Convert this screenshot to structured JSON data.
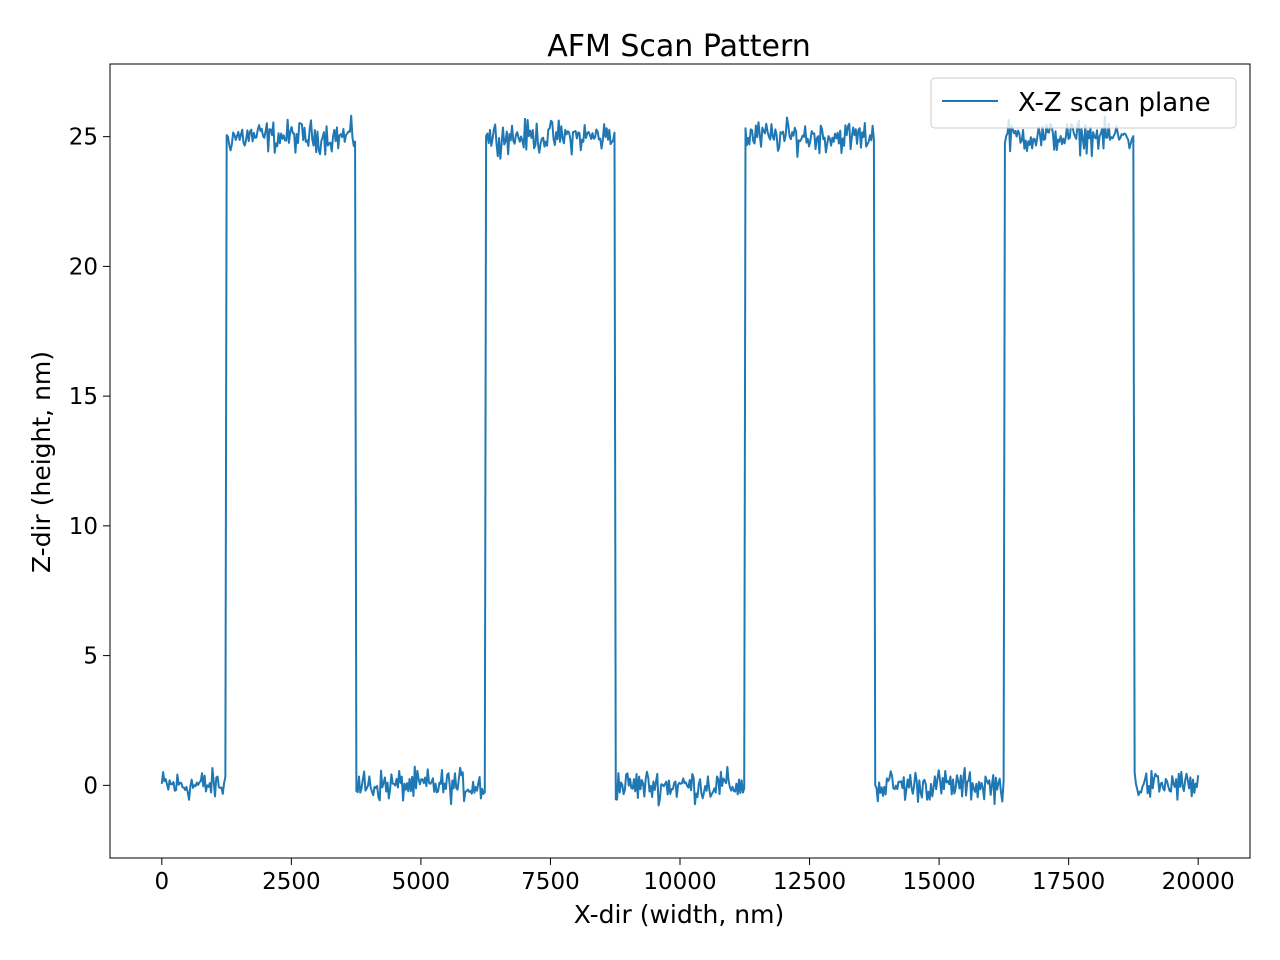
{
  "chart_data": {
    "type": "line",
    "title": "AFM Scan Pattern",
    "xlabel": "X-dir (width, nm)",
    "ylabel": "Z-dir (height, nm)",
    "xlim": [
      -1000,
      21000
    ],
    "ylim": [
      -2.8,
      27.8
    ],
    "xticks": [
      0,
      2500,
      5000,
      7500,
      10000,
      12500,
      15000,
      17500,
      20000
    ],
    "xtick_labels": [
      "0",
      "2500",
      "5000",
      "7500",
      "10000",
      "12500",
      "15000",
      "17500",
      "20000"
    ],
    "yticks": [
      0,
      5,
      10,
      15,
      20,
      25
    ],
    "ytick_labels": [
      "0",
      "5",
      "10",
      "15",
      "20",
      "25"
    ],
    "grid": false,
    "legend_position": "top-right",
    "series": [
      {
        "name": "X-Z scan plane",
        "color": "#1f77b4",
        "x_start": 0,
        "x_end": 20000,
        "low_level": 0,
        "high_level": 25,
        "noise_amplitude": 0.6,
        "period": 5000,
        "high_segments": [
          [
            1250,
            3750
          ],
          [
            6250,
            8750
          ],
          [
            11250,
            13750
          ],
          [
            16250,
            18750
          ]
        ],
        "points": 800
      }
    ]
  }
}
